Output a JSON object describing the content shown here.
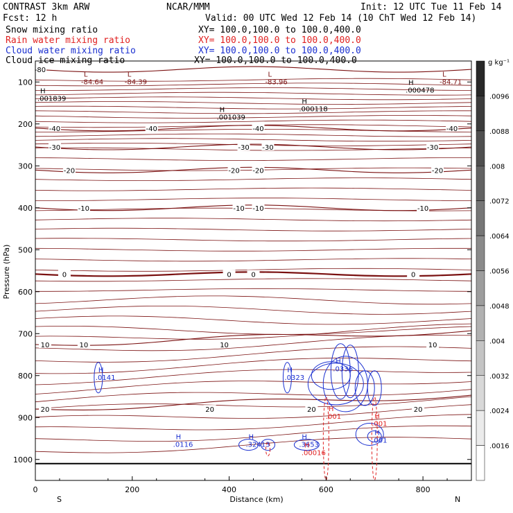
{
  "header": {
    "model": "CONTRAST  3km ARW",
    "center": "NCAR/MMM",
    "init": "Init: 12 UTC Tue 11 Feb 14",
    "fcst": "Fcst:    12 h",
    "valid": "Valid: 00 UTC Wed 12 Feb 14 (10 ChT Wed 12 Feb 14)"
  },
  "fields": [
    {
      "name": "Snow mixing ratio",
      "xy": "XY= 100.0,100.0 to 100.0,400.0",
      "color": "#000000"
    },
    {
      "name": "Rain water mixing ratio",
      "xy": "XY= 100.0,100.0 to 100.0,400.0",
      "color": "#e02020"
    },
    {
      "name": "Cloud water mixing ratio",
      "xy": "XY= 100.0,100.0 to 100.0,400.0",
      "color": "#1a2fd0"
    },
    {
      "name": "Cloud ice mixing ratio",
      "xy": "XY= 100.0,100.0 to 100.0,400.0",
      "color": "#000000"
    }
  ],
  "chart_data": {
    "type": "contour",
    "xlabel": "Distance (km)",
    "ylabel": "Pressure (hPa)",
    "xlim": [
      0,
      900
    ],
    "ylim": [
      1050,
      50
    ],
    "x_ticks": [
      "0",
      "200",
      "400",
      "600",
      "800"
    ],
    "x_tick_values": [
      0,
      200,
      400,
      600,
      800
    ],
    "y_ticks": [
      "100",
      "200",
      "300",
      "400",
      "500",
      "600",
      "700",
      "800",
      "900",
      "1000"
    ],
    "y_tick_values": [
      100,
      200,
      300,
      400,
      500,
      600,
      700,
      800,
      900,
      1000
    ],
    "endpoints": {
      "left": "S",
      "right": "N"
    },
    "colorbar": {
      "unit": "g kg⁻¹",
      "labels": [
        ".0096",
        ".0088",
        ".008",
        ".0072",
        ".0064",
        ".0056",
        ".0048",
        ".004",
        ".0032",
        ".0024",
        ".0016"
      ],
      "values": [
        0.0096,
        0.0088,
        0.008,
        0.0072,
        0.0064,
        0.0056,
        0.0048,
        0.004,
        0.0032,
        0.0024,
        0.0016
      ]
    },
    "temperature_isotherms": [
      {
        "value": -80,
        "p": 70,
        "labels": [
          {
            "text": "-80",
            "x": 10
          }
        ]
      },
      {
        "value": -40,
        "p": 210,
        "labels": [
          {
            "text": "-40",
            "x": 40
          },
          {
            "text": "-40",
            "x": 240
          },
          {
            "text": "-40",
            "x": 460
          },
          {
            "text": "-40",
            "x": 860
          }
        ]
      },
      {
        "value": -30,
        "p": 255,
        "labels": [
          {
            "text": "-30",
            "x": 40
          },
          {
            "text": "-30",
            "x": 430
          },
          {
            "text": "-30",
            "x": 480
          },
          {
            "text": "-30",
            "x": 820
          }
        ]
      },
      {
        "value": -20,
        "p": 310,
        "labels": [
          {
            "text": "-20",
            "x": 70
          },
          {
            "text": "-20",
            "x": 410
          },
          {
            "text": "-20",
            "x": 460
          },
          {
            "text": "-20",
            "x": 830
          }
        ]
      },
      {
        "value": -10,
        "p": 400,
        "labels": [
          {
            "text": "-10",
            "x": 100
          },
          {
            "text": "-10",
            "x": 420
          },
          {
            "text": "-10",
            "x": 460
          },
          {
            "text": "-10",
            "x": 800
          }
        ]
      },
      {
        "value": 0,
        "p": 558,
        "labels": [
          {
            "text": "0",
            "x": 60
          },
          {
            "text": "0",
            "x": 400
          },
          {
            "text": "0",
            "x": 450
          },
          {
            "text": "0",
            "x": 780
          }
        ]
      },
      {
        "value": 10,
        "p": 726,
        "labels": [
          {
            "text": "10",
            "x": 20
          },
          {
            "text": "10",
            "x": 100
          },
          {
            "text": "10",
            "x": 390
          },
          {
            "text": "10",
            "x": 820
          }
        ]
      },
      {
        "value": 20,
        "p": 880,
        "labels": [
          {
            "text": "20",
            "x": 20
          },
          {
            "text": "20",
            "x": 360
          },
          {
            "text": "20",
            "x": 570
          },
          {
            "text": "20",
            "x": 790
          }
        ]
      }
    ],
    "extrema_labels": [
      {
        "kind": "L",
        "value": "-84.64",
        "x": 100,
        "p": 100,
        "color": "#7a1010"
      },
      {
        "kind": "L",
        "value": "-84.39",
        "x": 190,
        "p": 100,
        "color": "#7a1010"
      },
      {
        "kind": "L",
        "value": "-83.96",
        "x": 480,
        "p": 100,
        "color": "#7a1010"
      },
      {
        "kind": "L",
        "value": "-84.71",
        "x": 840,
        "p": 100,
        "color": "#7a1010"
      },
      {
        "kind": "H",
        "value": ".001839",
        "x": 10,
        "p": 140,
        "color": "#000000"
      },
      {
        "kind": "H",
        "value": ".000478",
        "x": 770,
        "p": 120,
        "color": "#000000"
      },
      {
        "kind": "H",
        "value": ".000118",
        "x": 550,
        "p": 165,
        "color": "#000000"
      },
      {
        "kind": "H",
        "value": ".001039",
        "x": 380,
        "p": 185,
        "color": "#000000"
      },
      {
        "kind": "H",
        "value": ".0141",
        "x": 130,
        "p": 805,
        "color": "#1a2fd0"
      },
      {
        "kind": "H",
        "value": ".0323",
        "x": 520,
        "p": 805,
        "color": "#1a2fd0"
      },
      {
        "kind": "H",
        "value": ".0336",
        "x": 620,
        "p": 785,
        "color": "#1a2fd0"
      },
      {
        "kind": "H",
        "value": ".0116",
        "x": 290,
        "p": 965,
        "color": "#1a2fd0"
      },
      {
        "kind": "H",
        "value": ".32413",
        "x": 440,
        "p": 965,
        "color": "#1a2fd0"
      },
      {
        "kind": "H",
        "value": ".3653",
        "x": 550,
        "p": 965,
        "color": "#1a2fd0"
      },
      {
        "kind": "H",
        "value": ".00016",
        "x": 555,
        "p": 985,
        "color": "#e02020"
      },
      {
        "kind": "H",
        "value": ".001",
        "x": 605,
        "p": 898,
        "color": "#e02020"
      },
      {
        "kind": "H",
        "value": ".001",
        "x": 700,
        "p": 915,
        "color": "#e02020"
      },
      {
        "kind": "H",
        "value": ".001",
        "x": 700,
        "p": 955,
        "color": "#1a2fd0"
      }
    ],
    "surface_pressure": 1010
  }
}
